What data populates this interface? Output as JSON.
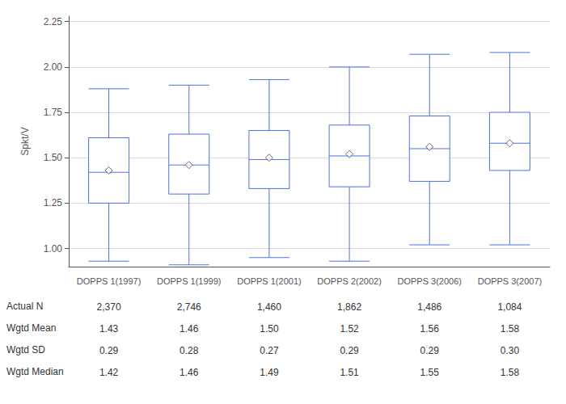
{
  "chart_data": {
    "type": "boxplot",
    "ylabel": "Spkt/V",
    "categories": [
      "DOPPS 1(1997)",
      "DOPPS 1(1999)",
      "DOPPS 1(2001)",
      "DOPPS 2(2002)",
      "DOPPS 3(2006)",
      "DOPPS 3(2007)"
    ],
    "series": [
      {
        "type": "boxplot",
        "values": [
          [
            0.93,
            1.25,
            1.42,
            1.61,
            1.88
          ],
          [
            0.91,
            1.3,
            1.46,
            1.63,
            1.9
          ],
          [
            0.95,
            1.33,
            1.49,
            1.65,
            1.93
          ],
          [
            0.93,
            1.34,
            1.51,
            1.68,
            2.0
          ],
          [
            1.02,
            1.37,
            1.55,
            1.73,
            2.07
          ],
          [
            1.02,
            1.43,
            1.58,
            1.75,
            2.08
          ]
        ]
      },
      {
        "type": "scatter",
        "marker": "diamond",
        "values": [
          1.43,
          1.46,
          1.5,
          1.52,
          1.56,
          1.58
        ]
      }
    ],
    "table_rows": [
      {
        "label": "Actual N",
        "values": [
          "2,370",
          "2,746",
          "1,460",
          "1,862",
          "1,486",
          "1,084"
        ]
      },
      {
        "label": "Wgtd Mean",
        "values": [
          "1.43",
          "1.46",
          "1.50",
          "1.52",
          "1.56",
          "1.58"
        ]
      },
      {
        "label": "Wgtd SD",
        "values": [
          "0.29",
          "0.28",
          "0.27",
          "0.29",
          "0.29",
          "0.30"
        ]
      },
      {
        "label": "Wgtd Median",
        "values": [
          "1.42",
          "1.46",
          "1.49",
          "1.51",
          "1.55",
          "1.58"
        ]
      }
    ],
    "ylim": [
      0.9,
      2.28
    ],
    "yticks": [
      {
        "value": 1.0,
        "label": "1.00"
      },
      1.25,
      {
        "value": 1.5,
        "label": "1.50"
      },
      1.75,
      {
        "value": 2.0,
        "label": "2.00"
      },
      2.25
    ],
    "grid": true
  }
}
